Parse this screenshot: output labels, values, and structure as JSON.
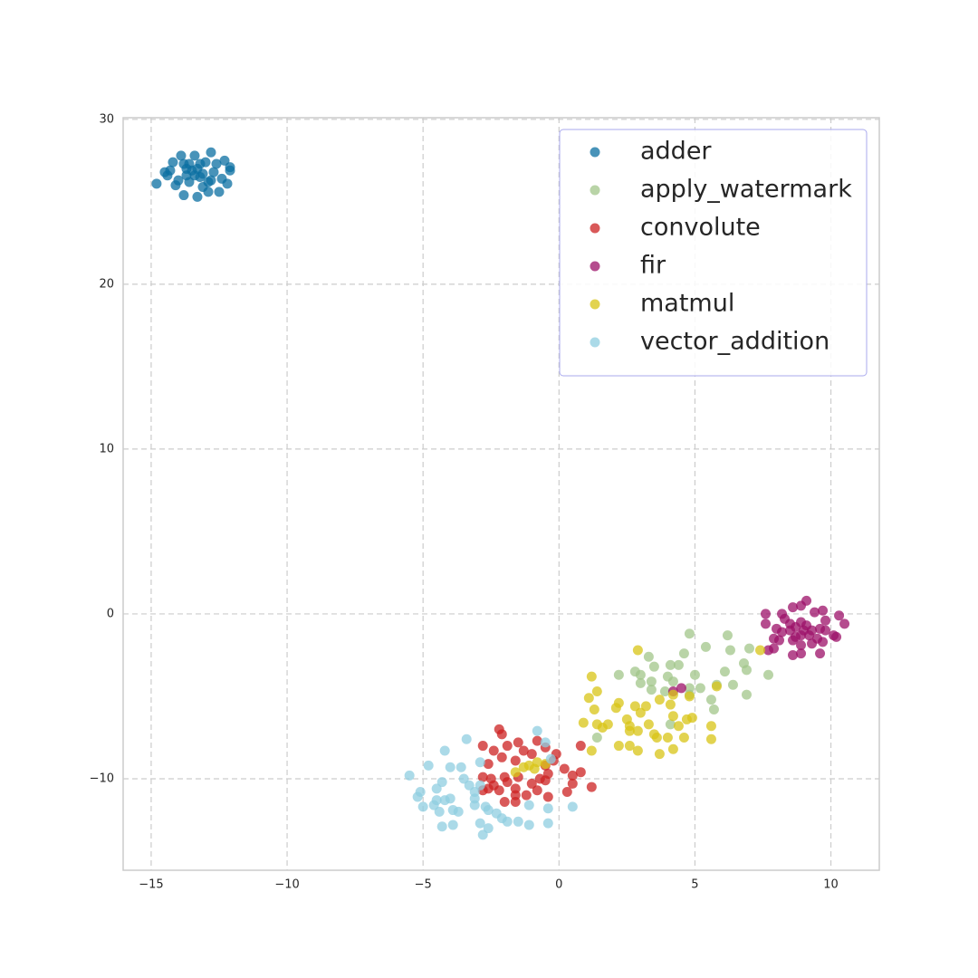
{
  "chart_data": {
    "type": "scatter",
    "xlim": [
      -16.03,
      11.78
    ],
    "ylim": [
      -15.55,
      30.1
    ],
    "xticks": [
      {
        "value": -15,
        "label": "−15"
      },
      {
        "value": -10,
        "label": "−10"
      },
      {
        "value": -5,
        "label": "−5"
      },
      0,
      5,
      10
    ],
    "yticks": [
      {
        "value": -10,
        "label": "−10"
      },
      0,
      10,
      20,
      30
    ],
    "grid": true,
    "legend": "upper right",
    "series": [
      {
        "name": "adder",
        "color": "#0b6fa2",
        "x": [
          -14.8,
          -14.4,
          -14.3,
          -14.2,
          -14.1,
          -13.9,
          -13.8,
          -13.7,
          -13.6,
          -13.5,
          -13.4,
          -13.3,
          -13.2,
          -13.1,
          -13.0,
          -12.9,
          -12.8,
          -12.7,
          -12.6,
          -12.5,
          -12.4,
          -12.3,
          -12.1,
          -12.2,
          -13.8,
          -13.3,
          -13.4,
          -13.6,
          -14.0,
          -13.1,
          -12.9,
          -14.5,
          -13.7,
          -13.2,
          -12.8,
          -12.1
        ],
        "y": [
          26.1,
          26.6,
          26.9,
          27.4,
          26.0,
          27.8,
          27.3,
          26.6,
          26.2,
          26.9,
          27.8,
          27.0,
          26.5,
          25.9,
          27.4,
          26.2,
          28.0,
          26.8,
          27.3,
          25.6,
          26.4,
          27.5,
          26.9,
          26.1,
          25.4,
          25.3,
          26.6,
          27.3,
          26.3,
          26.7,
          25.6,
          26.8,
          27.0,
          27.3,
          26.3,
          27.1
        ]
      },
      {
        "name": "apply_watermark",
        "color": "#a2c68a",
        "x": [
          4.8,
          6.2,
          5.4,
          6.3,
          7.0,
          4.6,
          3.3,
          2.8,
          2.2,
          3.0,
          3.5,
          4.1,
          4.4,
          5.0,
          6.1,
          6.8,
          6.9,
          7.7,
          4.0,
          4.2,
          3.4,
          3.0,
          3.9,
          4.8,
          5.2,
          5.8,
          6.4,
          3.4,
          6.9,
          5.6,
          4.8,
          5.7,
          4.1,
          1.4
        ],
        "y": [
          -1.2,
          -1.3,
          -2.0,
          -2.2,
          -2.1,
          -2.4,
          -2.6,
          -3.5,
          -3.7,
          -3.7,
          -3.2,
          -3.1,
          -3.1,
          -3.7,
          -3.5,
          -3.0,
          -3.4,
          -3.7,
          -3.8,
          -4.1,
          -4.1,
          -4.2,
          -4.7,
          -4.5,
          -4.5,
          -4.3,
          -4.3,
          -4.6,
          -4.9,
          -5.2,
          -4.9,
          -5.8,
          -6.7,
          -7.5
        ]
      },
      {
        "name": "convolute",
        "color": "#cc2222",
        "x": [
          -2.2,
          -2.1,
          -1.5,
          -0.8,
          -0.5,
          -2.8,
          -2.4,
          -1.9,
          -1.3,
          -1.0,
          -0.1,
          0.8,
          -2.1,
          -1.6,
          -2.6,
          -0.5,
          0.2,
          0.8,
          -2.8,
          -2.5,
          -2.0,
          -1.5,
          -1.9,
          -1.0,
          -0.7,
          -0.5,
          0.5,
          1.2,
          -2.6,
          -2.2,
          -2.8,
          -1.6,
          -1.6,
          -1.2,
          -0.8,
          -0.4,
          0.3,
          -2.0,
          -1.6,
          -2.4,
          -0.4,
          -0.2,
          0.5
        ],
        "y": [
          -7.0,
          -7.3,
          -7.8,
          -7.7,
          -8.1,
          -8.0,
          -8.3,
          -8.0,
          -8.3,
          -8.5,
          -8.5,
          -8.0,
          -8.7,
          -8.9,
          -9.1,
          -9.2,
          -9.4,
          -9.6,
          -9.9,
          -10.0,
          -9.9,
          -9.9,
          -10.2,
          -10.3,
          -10.0,
          -10.1,
          -10.3,
          -10.5,
          -10.6,
          -10.7,
          -10.7,
          -10.6,
          -11.0,
          -11.0,
          -10.7,
          -11.1,
          -10.8,
          -11.4,
          -11.4,
          -10.4,
          -9.7,
          -8.9,
          -9.8
        ]
      },
      {
        "name": "fir",
        "color": "#9c1068",
        "x": [
          7.6,
          7.6,
          8.2,
          8.6,
          8.9,
          9.1,
          9.4,
          9.7,
          10.3,
          10.5,
          8.3,
          8.5,
          8.7,
          8.9,
          9.1,
          9.3,
          9.6,
          9.8,
          8.0,
          8.2,
          8.5,
          8.7,
          8.9,
          9.2,
          9.5,
          9.7,
          10.1,
          10.2,
          7.9,
          8.1,
          8.6,
          8.9,
          9.3,
          9.6,
          8.6,
          8.9,
          7.9,
          7.7,
          4.2,
          4.5,
          9.8,
          9.0
        ],
        "y": [
          0.0,
          -0.6,
          0.0,
          0.4,
          0.5,
          0.8,
          0.1,
          0.2,
          -0.1,
          -0.6,
          -0.3,
          -0.6,
          -0.8,
          -0.5,
          -0.7,
          -1.0,
          -0.9,
          -0.4,
          -0.9,
          -1.1,
          -1.0,
          -1.4,
          -1.3,
          -1.3,
          -1.5,
          -1.7,
          -1.3,
          -1.4,
          -1.5,
          -1.6,
          -1.6,
          -1.9,
          -1.8,
          -2.4,
          -2.5,
          -2.4,
          -2.1,
          -2.2,
          -4.7,
          -4.5,
          -1.0,
          -1.0
        ]
      },
      {
        "name": "matmul",
        "color": "#d8c416",
        "x": [
          2.9,
          5.8,
          7.4,
          1.2,
          1.4,
          1.1,
          2.2,
          1.3,
          2.1,
          2.8,
          3.2,
          3.7,
          4.1,
          4.2,
          4.8,
          0.9,
          1.4,
          1.6,
          1.8,
          2.5,
          2.6,
          3.0,
          3.3,
          4.2,
          4.4,
          4.7,
          4.9,
          5.6,
          2.6,
          2.9,
          3.5,
          3.6,
          4.0,
          4.6,
          5.6,
          1.2,
          2.2,
          2.6,
          2.9,
          3.7,
          4.2,
          -0.8,
          -1.1,
          -1.3,
          -0.5,
          -0.9,
          -1.6
        ],
        "y": [
          -2.2,
          -4.4,
          -2.2,
          -3.8,
          -4.7,
          -5.1,
          -5.4,
          -5.8,
          -5.7,
          -5.6,
          -5.6,
          -5.2,
          -5.5,
          -4.9,
          -5.0,
          -6.6,
          -6.7,
          -6.9,
          -6.7,
          -6.4,
          -6.8,
          -6.0,
          -6.7,
          -6.2,
          -6.8,
          -6.4,
          -6.3,
          -6.8,
          -7.1,
          -7.1,
          -7.3,
          -7.5,
          -7.5,
          -7.5,
          -7.6,
          -8.3,
          -8.0,
          -8.0,
          -8.3,
          -8.5,
          -8.2,
          -9.0,
          -9.2,
          -9.3,
          -9.1,
          -9.4,
          -9.6
        ]
      },
      {
        "name": "vector_addition",
        "color": "#8fcde0",
        "x": [
          -3.4,
          -4.2,
          -0.8,
          -0.5,
          -4.8,
          -4.0,
          -3.6,
          -2.9,
          -0.3,
          -5.5,
          -4.3,
          -3.5,
          -3.3,
          -2.9,
          -5.1,
          -4.5,
          -3.1,
          -5.2,
          -4.2,
          -4.0,
          -3.1,
          -2.7,
          -5.0,
          -4.6,
          -4.4,
          -3.7,
          -3.9,
          -3.1,
          -2.6,
          -1.1,
          -0.4,
          0.5,
          -4.3,
          -3.9,
          -2.9,
          -2.6,
          -2.1,
          -1.9,
          -1.5,
          -1.1,
          -0.4,
          -2.8,
          -2.3,
          -4.5
        ],
        "y": [
          -7.6,
          -8.3,
          -7.1,
          -7.8,
          -9.2,
          -9.3,
          -9.3,
          -9.0,
          -8.8,
          -9.8,
          -10.2,
          -10.0,
          -10.4,
          -10.4,
          -10.8,
          -10.6,
          -10.8,
          -11.1,
          -11.3,
          -11.2,
          -11.2,
          -11.7,
          -11.7,
          -11.6,
          -12.0,
          -12.0,
          -11.9,
          -11.6,
          -11.9,
          -11.6,
          -11.8,
          -11.7,
          -12.9,
          -12.8,
          -12.7,
          -13.0,
          -12.4,
          -12.6,
          -12.6,
          -12.8,
          -12.7,
          -13.4,
          -12.1,
          -11.3
        ]
      }
    ]
  }
}
